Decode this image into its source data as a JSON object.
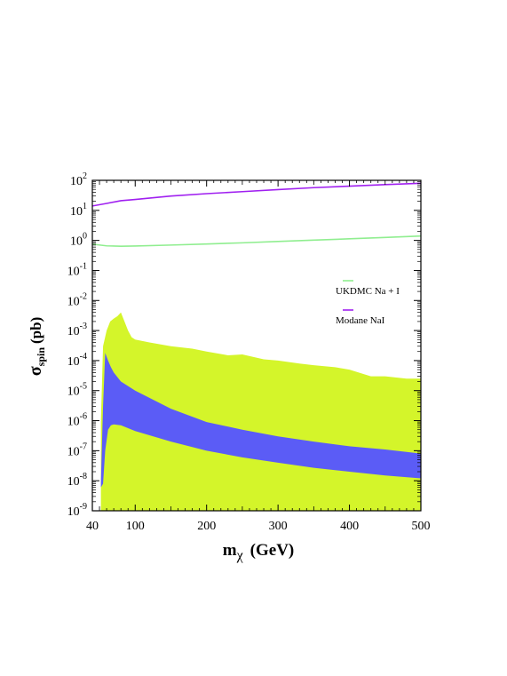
{
  "chart_data": {
    "type": "area",
    "xlabel": "m",
    "xlabel_sub": "χ",
    "xlabel_unit": "(GeV)",
    "ylabel": "σ",
    "ylabel_sub": "spin",
    "ylabel_unit": "(pb)",
    "xlim": [
      40,
      500
    ],
    "ylim_log10": [
      -9,
      2
    ],
    "y_scale": "log",
    "x_ticks": [
      {
        "value": 40,
        "label": "40"
      },
      {
        "value": 100,
        "label": "100"
      },
      {
        "value": 200,
        "label": "200"
      },
      {
        "value": 300,
        "label": "300"
      },
      {
        "value": 400,
        "label": "400"
      },
      {
        "value": 500,
        "label": "500"
      }
    ],
    "y_ticks": [
      {
        "exp": 2,
        "base": "10",
        "sup": "2"
      },
      {
        "exp": 1,
        "base": "10",
        "sup": "1"
      },
      {
        "exp": 0,
        "base": "10",
        "sup": "0"
      },
      {
        "exp": -1,
        "base": "10",
        "sup": "-1"
      },
      {
        "exp": -2,
        "base": "10",
        "sup": "-2"
      },
      {
        "exp": -3,
        "base": "10",
        "sup": "-3"
      },
      {
        "exp": -4,
        "base": "10",
        "sup": "-4"
      },
      {
        "exp": -5,
        "base": "10",
        "sup": "-5"
      },
      {
        "exp": -6,
        "base": "10",
        "sup": "-6"
      },
      {
        "exp": -7,
        "base": "10",
        "sup": "-7"
      },
      {
        "exp": -8,
        "base": "10",
        "sup": "-8"
      },
      {
        "exp": -9,
        "base": "10",
        "sup": "-9"
      }
    ],
    "series": [
      {
        "name": "UKDMC Na + I",
        "kind": "line",
        "color": "#90ee90",
        "x": [
          40,
          60,
          80,
          100,
          150,
          200,
          250,
          300,
          350,
          400,
          450,
          500
        ],
        "y": [
          0.75,
          0.66,
          0.64,
          0.65,
          0.7,
          0.76,
          0.83,
          0.92,
          1.02,
          1.13,
          1.25,
          1.4
        ]
      },
      {
        "name": "Modane NaI",
        "kind": "line",
        "color": "#a020f0",
        "x": [
          40,
          60,
          80,
          100,
          150,
          200,
          250,
          300,
          350,
          400,
          450,
          500
        ],
        "y": [
          14,
          17,
          21,
          23,
          30,
          36,
          42,
          49,
          57,
          64,
          72,
          80
        ]
      },
      {
        "kind": "band",
        "color": "#d4f52a",
        "x": [
          52,
          55,
          60,
          65,
          70,
          75,
          80,
          85,
          90,
          95,
          100,
          120,
          150,
          180,
          200,
          230,
          250,
          280,
          300,
          330,
          350,
          380,
          400,
          430,
          450,
          480,
          500
        ],
        "y_upper": [
          1e-06,
          0.0003,
          0.001,
          0.002,
          0.0025,
          0.003,
          0.004,
          0.002,
          0.001,
          0.0006,
          0.0005,
          0.0004,
          0.0003,
          0.00025,
          0.0002,
          0.00015,
          0.00016,
          0.00011,
          0.0001,
          8e-05,
          7e-05,
          6e-05,
          5e-05,
          3e-05,
          3e-05,
          2.5e-05,
          2.5e-05
        ],
        "y_lower": [
          1e-09,
          1e-09,
          1e-09,
          1e-09,
          1e-09,
          1e-09,
          1e-09,
          1e-09,
          1e-09,
          1e-09,
          1e-09,
          1e-09,
          1e-09,
          1e-09,
          1e-09,
          1e-09,
          1e-09,
          1e-09,
          1e-09,
          1e-09,
          1e-09,
          1e-09,
          1e-09,
          1e-09,
          1e-09,
          1e-09,
          1e-09
        ]
      },
      {
        "kind": "band",
        "color": "#5b5cf6",
        "x": [
          52,
          55,
          58,
          62,
          66,
          70,
          80,
          100,
          150,
          200,
          250,
          300,
          350,
          400,
          450,
          500
        ],
        "y_upper": [
          1e-08,
          3e-06,
          0.00018,
          0.0001,
          6e-05,
          4e-05,
          2e-05,
          1e-05,
          2.5e-06,
          9e-07,
          5e-07,
          3e-07,
          2e-07,
          1.4e-07,
          1.1e-07,
          8e-08
        ],
        "y_lower": [
          6e-09,
          8e-09,
          1e-07,
          5e-07,
          7e-07,
          7.5e-07,
          7e-07,
          4.5e-07,
          2e-07,
          1e-07,
          6e-08,
          4e-08,
          2.7e-08,
          2e-08,
          1.5e-08,
          1.2e-08
        ]
      }
    ],
    "legend_position": "right"
  }
}
